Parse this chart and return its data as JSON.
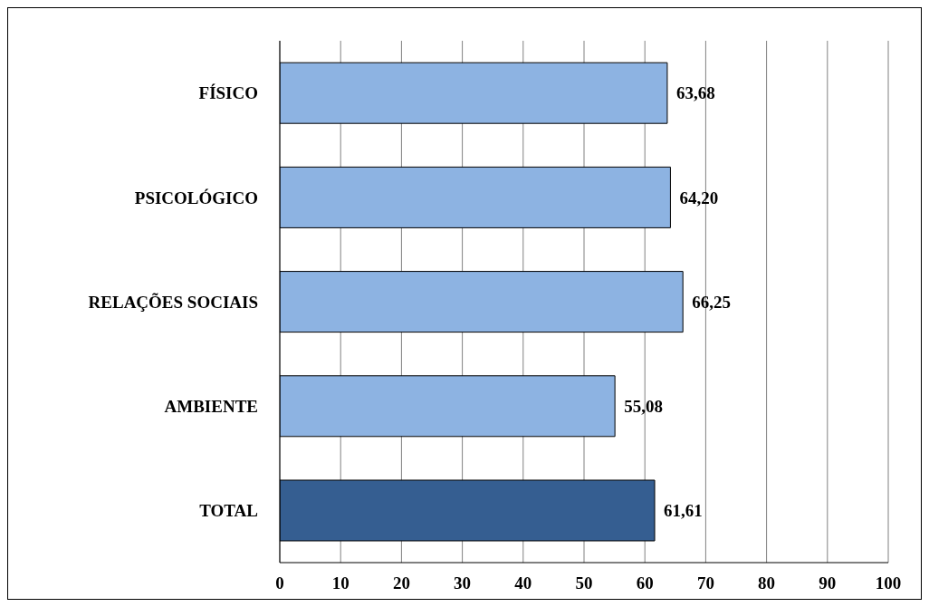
{
  "chart_data": {
    "type": "bar",
    "orientation": "horizontal",
    "categories": [
      "FÍSICO",
      "PSICOLÓGICO",
      "RELAÇÕES SOCIAIS",
      "AMBIENTE",
      "TOTAL"
    ],
    "values": [
      63.68,
      64.2,
      66.25,
      55.08,
      61.61
    ],
    "colors": [
      "#8db3e2",
      "#8db3e2",
      "#8db3e2",
      "#8db3e2",
      "#355e91"
    ],
    "value_labels": [
      "63,68",
      "64,20",
      "66,25",
      "55,08",
      "61,61"
    ],
    "xlim": [
      0,
      100
    ],
    "xticks": [
      0,
      10,
      20,
      30,
      40,
      50,
      60,
      70,
      80,
      90,
      100
    ],
    "grid": "x"
  }
}
